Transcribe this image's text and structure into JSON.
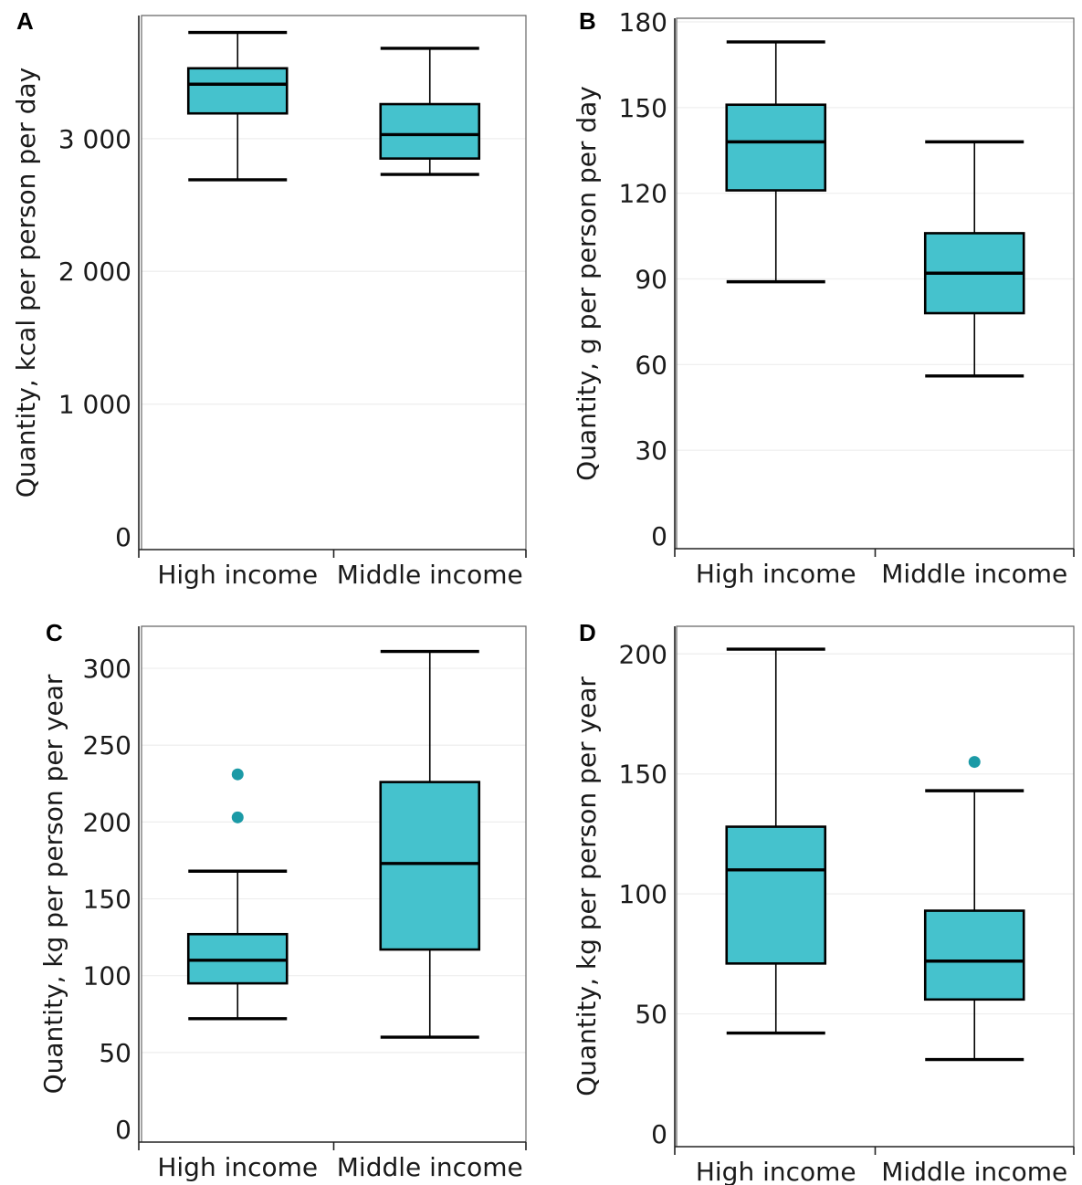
{
  "colors": {
    "box_fill": "#45c2cd",
    "outlier": "#1b9aa6",
    "line": "#000000",
    "frame": "#666666",
    "grid": "#eeeeee"
  },
  "chart_data": [
    {
      "panel": "A",
      "type": "box",
      "ylabel": "Quantity, kcal per person per day",
      "ylim": [
        0,
        3900
      ],
      "yticks": [
        0,
        1000,
        2000,
        3000
      ],
      "ytick_labels": [
        "0",
        "1 000",
        "2 000",
        "3 000"
      ],
      "categories": [
        "High income",
        "Middle income"
      ],
      "boxes": [
        {
          "category": "High income",
          "whisker_low": 2690,
          "q1": 3190,
          "median": 3410,
          "q3": 3530,
          "whisker_high": 3800,
          "outliers": []
        },
        {
          "category": "Middle income",
          "whisker_low": 2730,
          "q1": 2850,
          "median": 3030,
          "q3": 3260,
          "whisker_high": 3680,
          "outliers": []
        }
      ]
    },
    {
      "panel": "B",
      "type": "box",
      "ylabel": "Quantity, g per person per day",
      "ylim": [
        0,
        180
      ],
      "yticks": [
        0,
        30,
        60,
        90,
        120,
        150,
        180
      ],
      "ytick_labels": [
        "0",
        "30",
        "60",
        "90",
        "120",
        "150",
        "180"
      ],
      "categories": [
        "High income",
        "Middle income"
      ],
      "boxes": [
        {
          "category": "High income",
          "whisker_low": 89,
          "q1": 121,
          "median": 138,
          "q3": 151,
          "whisker_high": 173,
          "outliers": []
        },
        {
          "category": "Middle income",
          "whisker_low": 56,
          "q1": 78,
          "median": 92,
          "q3": 106,
          "whisker_high": 138,
          "outliers": []
        }
      ]
    },
    {
      "panel": "C",
      "type": "box",
      "ylabel": "Quantity, kg per person per year",
      "ylim": [
        0,
        325
      ],
      "yticks": [
        0,
        50,
        100,
        150,
        200,
        250,
        300
      ],
      "ytick_labels": [
        "0",
        "50",
        "100",
        "150",
        "200",
        "250",
        "300"
      ],
      "categories": [
        "High income",
        "Middle income"
      ],
      "boxes": [
        {
          "category": "High income",
          "whisker_low": 72,
          "q1": 95,
          "median": 110,
          "q3": 127,
          "whisker_high": 168,
          "outliers": [
            231,
            203
          ]
        },
        {
          "category": "Middle income",
          "whisker_low": 60,
          "q1": 117,
          "median": 173,
          "q3": 226,
          "whisker_high": 311,
          "outliers": []
        }
      ]
    },
    {
      "panel": "D",
      "type": "box",
      "ylabel": "Quantity, kg per person per year",
      "ylim": [
        0,
        210
      ],
      "yticks": [
        0,
        50,
        100,
        150,
        200
      ],
      "ytick_labels": [
        "0",
        "50",
        "100",
        "150",
        "200"
      ],
      "categories": [
        "High income",
        "Middle income"
      ],
      "boxes": [
        {
          "category": "High income",
          "whisker_low": 42,
          "q1": 71,
          "median": 110,
          "q3": 128,
          "whisker_high": 202,
          "outliers": []
        },
        {
          "category": "Middle income",
          "whisker_low": 31,
          "q1": 56,
          "median": 72,
          "q3": 93,
          "whisker_high": 143,
          "outliers": [
            155
          ]
        }
      ]
    }
  ]
}
